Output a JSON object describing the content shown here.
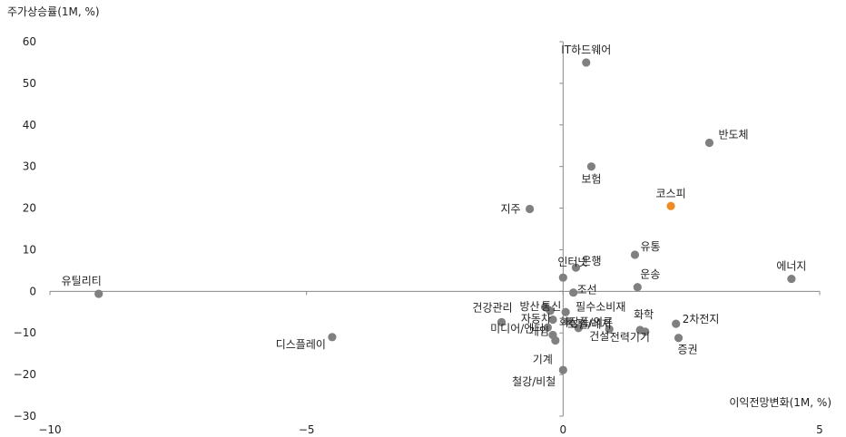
{
  "chart_data": {
    "type": "scatter",
    "title": "",
    "xlabel": "이익전망변화(1M, %)",
    "ylabel": "주가상승률(1M, %)",
    "xlim": [
      -10,
      5
    ],
    "ylim": [
      -30,
      60
    ],
    "xticks": [
      -10,
      -5,
      0,
      5
    ],
    "yticks": [
      -30,
      -20,
      -10,
      0,
      10,
      20,
      30,
      40,
      50,
      60
    ],
    "x_tick_labels": [
      "−10",
      "−5",
      "0",
      "5"
    ],
    "y_tick_labels": [
      "−30",
      "−20",
      "−10",
      "0",
      "10",
      "20",
      "30",
      "40",
      "50",
      "60"
    ],
    "grid": false,
    "colors": {
      "point": "#808080",
      "highlight": "#f08a24",
      "axis": "#888888"
    },
    "points": [
      {
        "label": "IT하드웨어",
        "x": 0.45,
        "y": 55.0
      },
      {
        "label": "반도체",
        "x": 2.85,
        "y": 35.7
      },
      {
        "label": "보험",
        "x": 0.55,
        "y": 30.0
      },
      {
        "label": "코스피",
        "x": 2.1,
        "y": 20.5,
        "highlight": true
      },
      {
        "label": "지주",
        "x": -0.65,
        "y": 19.8
      },
      {
        "label": "유통",
        "x": 1.4,
        "y": 8.8
      },
      {
        "label": "인터넷",
        "x": 0.0,
        "y": 3.3
      },
      {
        "label": "은행",
        "x": 0.25,
        "y": 5.7
      },
      {
        "label": "에너지",
        "x": 4.45,
        "y": 3.0
      },
      {
        "label": "유틸리티",
        "x": -9.05,
        "y": -0.6
      },
      {
        "label": "운송",
        "x": 1.45,
        "y": 1.0
      },
      {
        "label": "조선",
        "x": 0.2,
        "y": -0.3
      },
      {
        "label": "방산",
        "x": -0.35,
        "y": -3.8
      },
      {
        "label": "통신",
        "x": -0.25,
        "y": -4.7
      },
      {
        "label": "필수소비재",
        "x": 0.05,
        "y": -5.0
      },
      {
        "label": "건강관리",
        "x": -1.2,
        "y": -7.4
      },
      {
        "label": "자동차",
        "x": -0.2,
        "y": -6.8
      },
      {
        "label": "화장품/의류",
        "x": 0.1,
        "y": -7.2
      },
      {
        "label": "미디어/엔터",
        "x": -0.3,
        "y": -8.7
      },
      {
        "label": "게임",
        "x": -0.2,
        "y": -10.5
      },
      {
        "label": "호텔/레저",
        "x": 0.3,
        "y": -8.8
      },
      {
        "label": "건설",
        "x": 0.9,
        "y": -9.1
      },
      {
        "label": "전력기기",
        "x": 1.6,
        "y": -9.7
      },
      {
        "label": "화학",
        "x": 1.5,
        "y": -9.3
      },
      {
        "label": "2차전지",
        "x": 2.2,
        "y": -7.8
      },
      {
        "label": "증권",
        "x": 2.25,
        "y": -11.2
      },
      {
        "label": "디스플레이",
        "x": -4.5,
        "y": -11.0
      },
      {
        "label": "기계",
        "x": -0.15,
        "y": -11.8
      },
      {
        "label": "철강/비철",
        "x": 0.0,
        "y": -18.9
      }
    ]
  }
}
